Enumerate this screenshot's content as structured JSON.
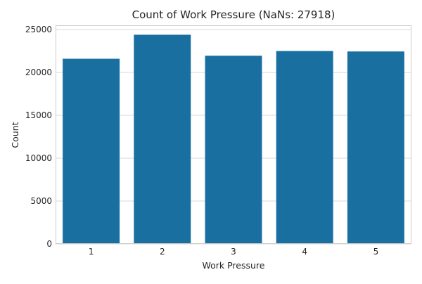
{
  "chart_data": {
    "type": "bar",
    "title": "Count of Work Pressure (NaNs: 27918)",
    "xlabel": "Work Pressure",
    "ylabel": "Count",
    "categories": [
      "1",
      "2",
      "3",
      "4",
      "5"
    ],
    "values": [
      21600,
      24400,
      21950,
      22500,
      22450
    ],
    "ylim": [
      0,
      25500
    ],
    "yticks": [
      "0",
      "5000",
      "10000",
      "15000",
      "20000",
      "25000"
    ],
    "grid": true,
    "bar_color": "#1a6fa1",
    "grid_color": "#d9d9d9",
    "spine_color": "#cccccc"
  }
}
